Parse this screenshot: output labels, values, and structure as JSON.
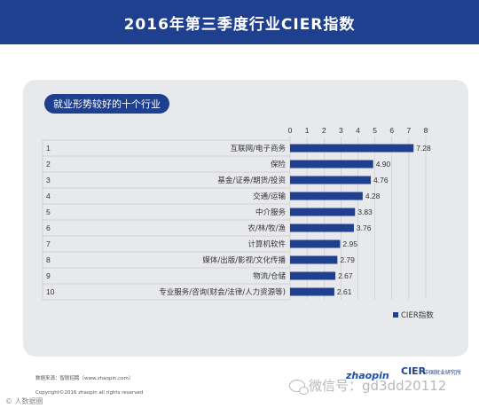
{
  "header": {
    "title": "2016年第三季度行业CIER指数"
  },
  "section_tag": "就业形势较好的十个行业",
  "chart_data": {
    "type": "bar",
    "orientation": "horizontal",
    "title": "就业形势较好的十个行业",
    "ranks": [
      "1",
      "2",
      "3",
      "4",
      "5",
      "6",
      "7",
      "8",
      "9",
      "10"
    ],
    "categories": [
      "互联网/电子商务",
      "保险",
      "基金/证券/期货/投资",
      "交通/运输",
      "中介服务",
      "农/林/牧/渔",
      "计算机软件",
      "媒体/出版/影视/文化传播",
      "物流/仓储",
      "专业服务/咨询(财会/法律/人力资源等)"
    ],
    "series": [
      {
        "name": "CIER指数",
        "values": [
          7.28,
          4.9,
          4.76,
          4.28,
          3.83,
          3.76,
          2.95,
          2.79,
          2.67,
          2.61
        ]
      }
    ],
    "value_labels": [
      "7.28",
      "4.90",
      "4.76",
      "4.28",
      "3.83",
      "3.76",
      "2.95",
      "2.79",
      "2.67",
      "2.61"
    ],
    "x_ticks": [
      0,
      1,
      2,
      3,
      4,
      5,
      6,
      7,
      8
    ],
    "xlim": [
      0,
      8
    ],
    "legend_position": "bottom-right",
    "grid": true,
    "bar_color": "#1f3f8f"
  },
  "footer": {
    "source": "数据来源：智联招聘（www.zhaopin.com）",
    "copyright": "Copyright©2016 zhaopin all rights reserved"
  },
  "corner_mark": "© 人数据圈",
  "logos": {
    "zhaopin": "zhaopin",
    "cier": "CIER",
    "center": "中国就业研究所"
  },
  "watermark": {
    "text": "微信号：gd3dd20112",
    "icon": "wechat-icon"
  }
}
